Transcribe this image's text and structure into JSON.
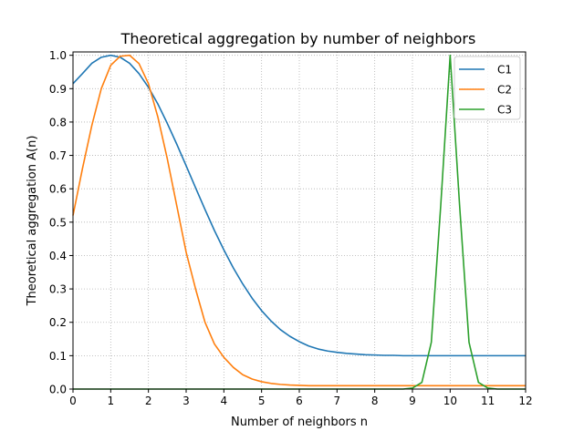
{
  "chart_data": {
    "type": "line",
    "title": "Theoretical aggregation by number of neighbors",
    "xlabel": "Number of neighbors n",
    "ylabel": "Theoretical aggregation A(n)",
    "xlim": [
      0,
      12
    ],
    "ylim": [
      0,
      1.01
    ],
    "x_ticks": [
      "0",
      "1",
      "2",
      "3",
      "4",
      "5",
      "6",
      "7",
      "8",
      "9",
      "10",
      "11",
      "12"
    ],
    "y_ticks": [
      "0.0",
      "0.1",
      "0.2",
      "0.3",
      "0.4",
      "0.5",
      "0.6",
      "0.7",
      "0.8",
      "0.9",
      "1.0"
    ],
    "grid": true,
    "legend_position": "top-right",
    "x": [
      0,
      0.25,
      0.5,
      0.75,
      1,
      1.25,
      1.5,
      1.75,
      2,
      2.25,
      2.5,
      2.75,
      3,
      3.25,
      3.5,
      3.75,
      4,
      4.25,
      4.5,
      4.75,
      5,
      5.25,
      5.5,
      5.75,
      6,
      6.25,
      6.5,
      6.75,
      7,
      7.25,
      7.5,
      7.75,
      8,
      8.25,
      8.5,
      8.75,
      9,
      9.25,
      9.5,
      9.75,
      10,
      10.25,
      10.5,
      10.75,
      11,
      11.25,
      11.5,
      11.75,
      12
    ],
    "series": [
      {
        "name": "C1",
        "color": "#1f77b4",
        "values": [
          0.915,
          0.945,
          0.976,
          0.994,
          1.0,
          0.994,
          0.976,
          0.945,
          0.904,
          0.854,
          0.796,
          0.734,
          0.669,
          0.603,
          0.538,
          0.475,
          0.417,
          0.363,
          0.315,
          0.272,
          0.235,
          0.204,
          0.178,
          0.158,
          0.142,
          0.129,
          0.12,
          0.114,
          0.11,
          0.107,
          0.105,
          0.103,
          0.102,
          0.101,
          0.101,
          0.1,
          0.1,
          0.1,
          0.1,
          0.1,
          0.1,
          0.1,
          0.1,
          0.1,
          0.1,
          0.1,
          0.1,
          0.1,
          0.1
        ]
      },
      {
        "name": "C2",
        "color": "#ff7f0e",
        "values": [
          0.52,
          0.66,
          0.79,
          0.9,
          0.97,
          0.997,
          1.0,
          0.975,
          0.915,
          0.815,
          0.69,
          0.55,
          0.41,
          0.3,
          0.2,
          0.135,
          0.095,
          0.065,
          0.043,
          0.03,
          0.022,
          0.017,
          0.014,
          0.012,
          0.011,
          0.01,
          0.01,
          0.01,
          0.01,
          0.01,
          0.01,
          0.01,
          0.01,
          0.01,
          0.01,
          0.01,
          0.01,
          0.01,
          0.01,
          0.01,
          0.01,
          0.01,
          0.01,
          0.01,
          0.01,
          0.01,
          0.01,
          0.01,
          0.01
        ]
      },
      {
        "name": "C3",
        "color": "#2ca02c",
        "values": [
          0,
          0,
          0,
          0,
          0,
          0,
          0,
          0,
          0,
          0,
          0,
          0,
          0,
          0,
          0,
          0,
          0,
          0,
          0,
          0,
          0,
          0,
          0,
          0,
          0,
          0,
          0,
          0,
          0,
          0,
          0,
          0,
          0,
          0,
          0,
          0,
          0.003,
          0.02,
          0.14,
          0.55,
          1.0,
          0.55,
          0.14,
          0.02,
          0.003,
          0,
          0,
          0,
          0
        ]
      }
    ]
  }
}
